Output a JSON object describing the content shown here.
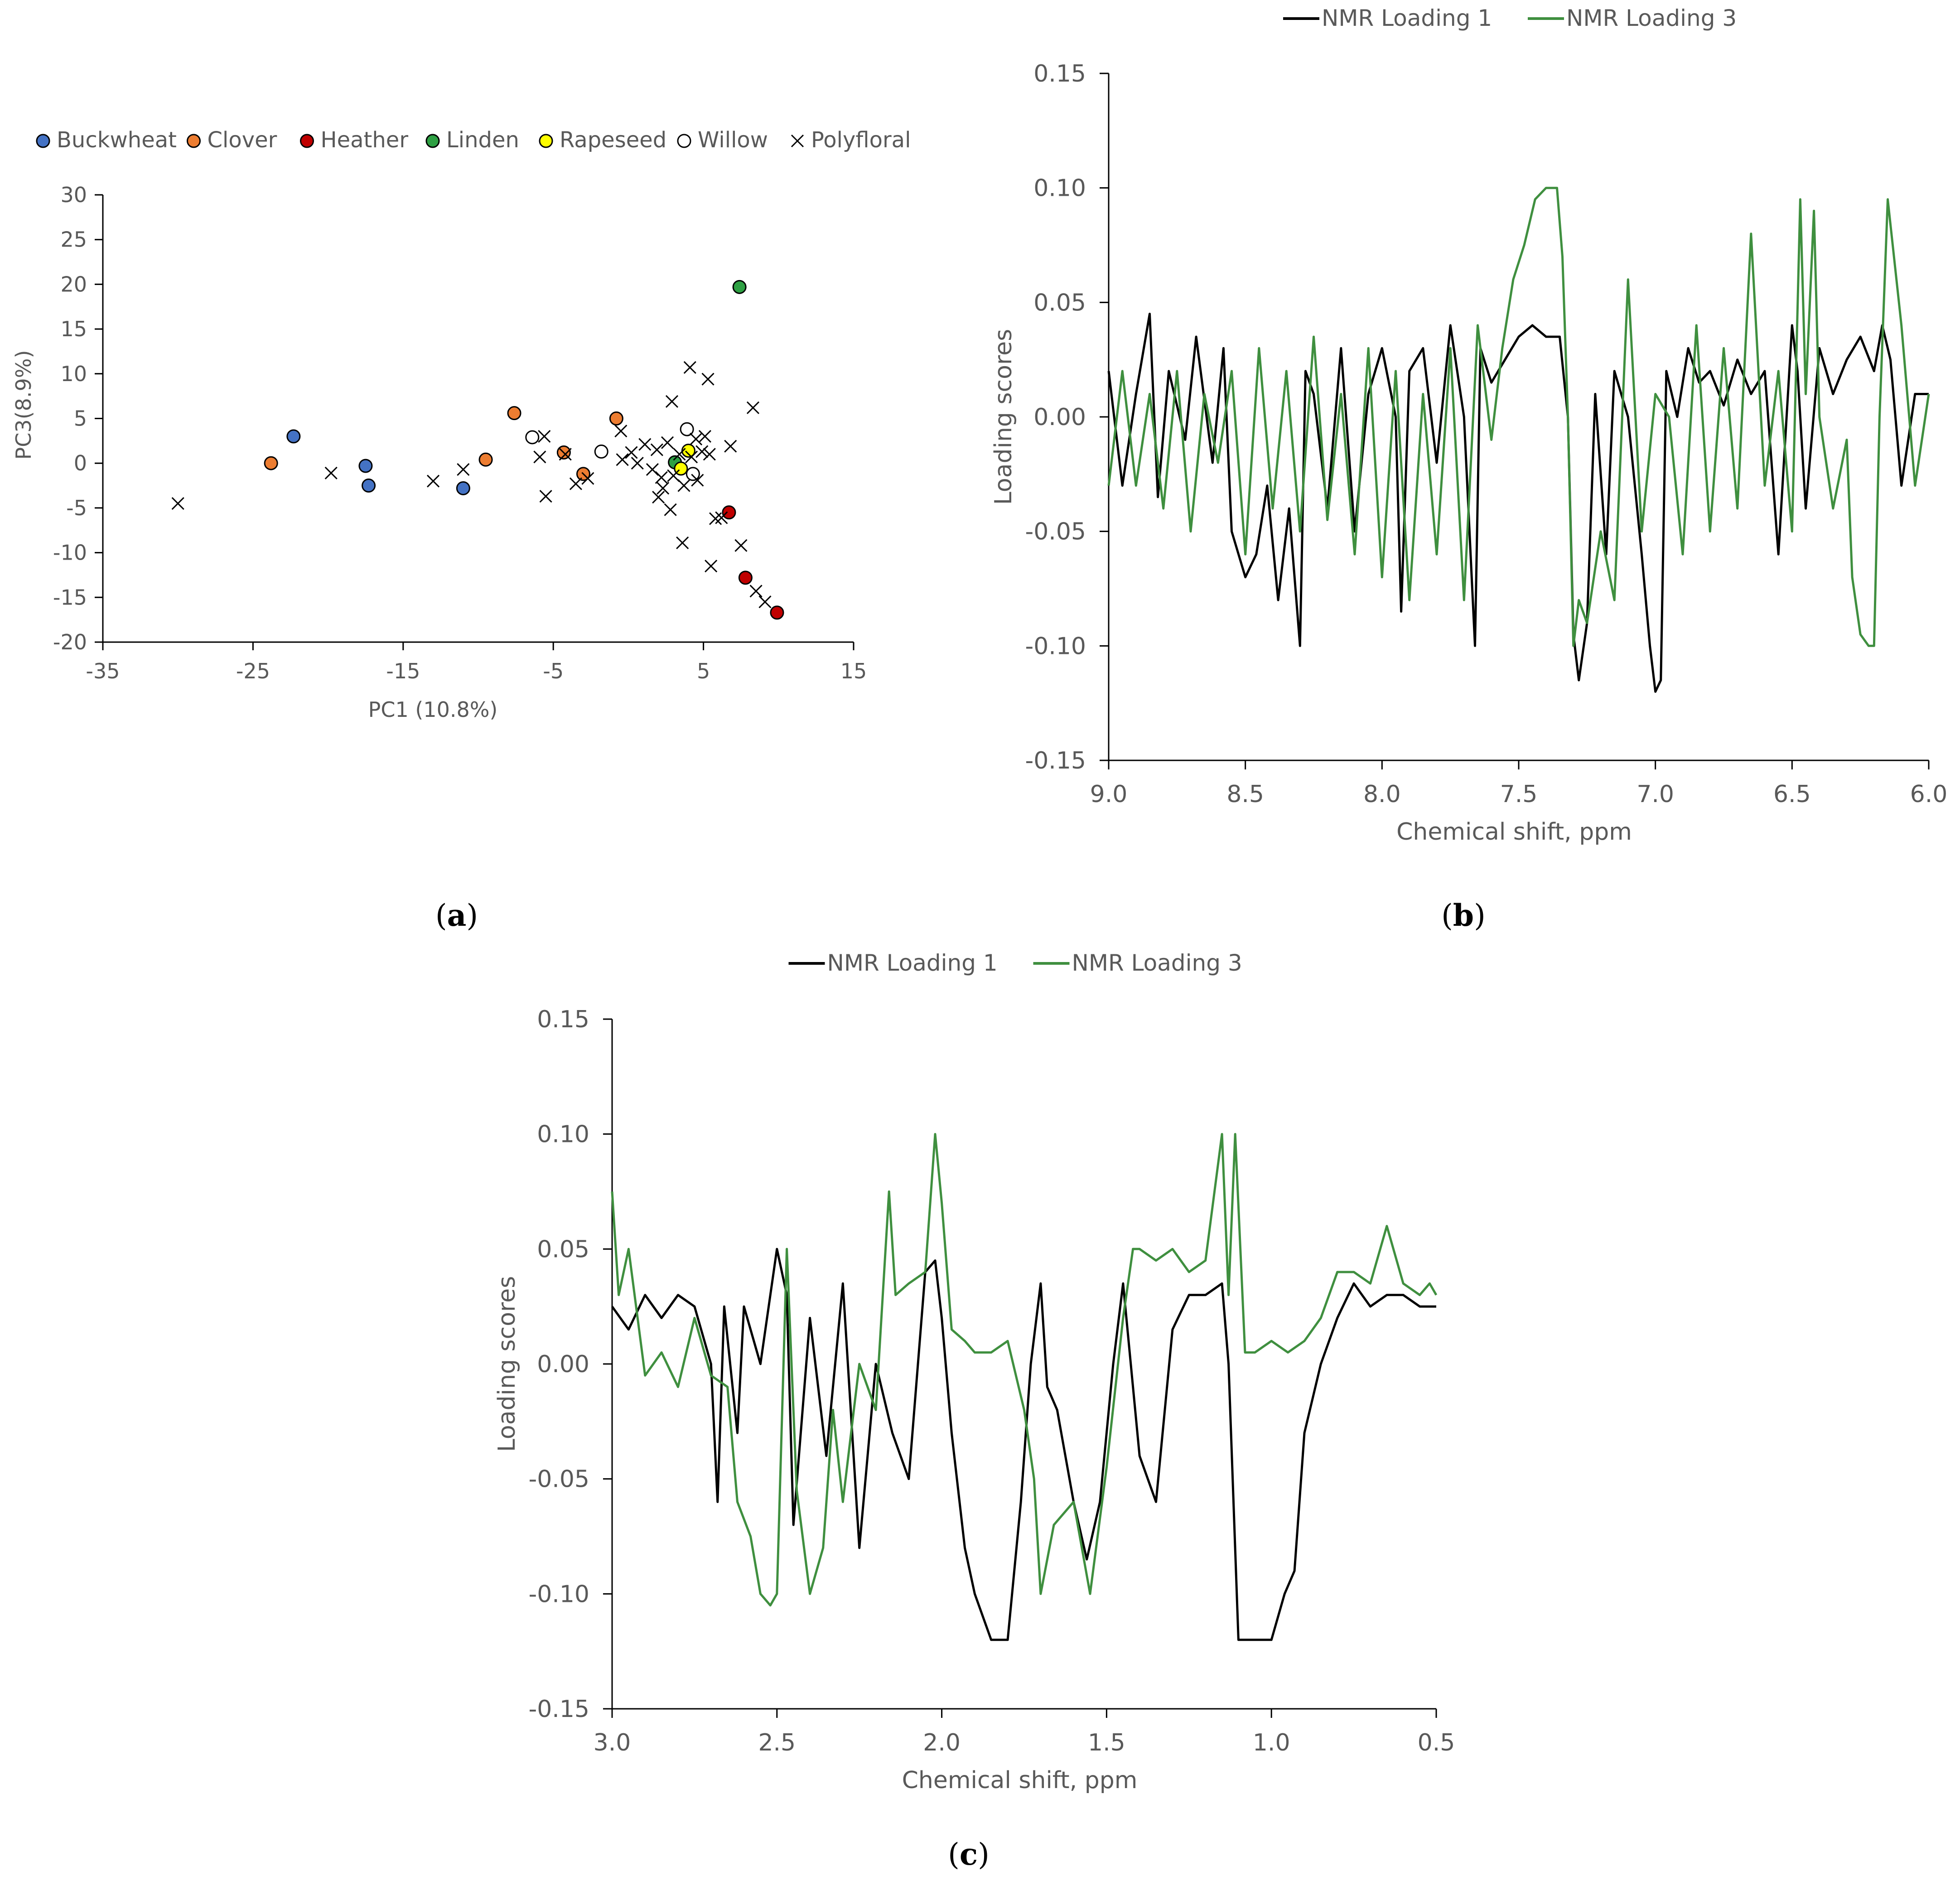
{
  "panel_labels": [
    "a",
    "b",
    "c"
  ],
  "colors": {
    "buckwheat": "#4472c4",
    "clover": "#ed7d31",
    "heather": "#c00000",
    "linden": "#2ea043",
    "rapeseed": "#ffff00",
    "loading1": "#000000",
    "loading3": "#3f8f3f",
    "axis": "#000000",
    "text": "#595959"
  },
  "chart_data": [
    {
      "id": "a",
      "type": "scatter",
      "title": "",
      "xlabel": "PC1 (10.8%)",
      "ylabel": "PC3(8.9%)",
      "xlim": [
        -35,
        15
      ],
      "ylim": [
        -20,
        30
      ],
      "xticks": [
        -35,
        -25,
        -15,
        -5,
        5,
        15
      ],
      "yticks": [
        -20,
        -15,
        -10,
        -5,
        0,
        5,
        10,
        15,
        20,
        25,
        30
      ],
      "grid": false,
      "legend_position": "top",
      "series": [
        {
          "name": "Buckwheat",
          "marker": "circle",
          "color": "#4472c4",
          "points": [
            [
              -22.3,
              3.0
            ],
            [
              -17.5,
              -0.3
            ],
            [
              -17.3,
              -2.5
            ],
            [
              -11.0,
              -2.8
            ]
          ]
        },
        {
          "name": "Clover",
          "marker": "circle",
          "color": "#ed7d31",
          "points": [
            [
              -23.8,
              0.0
            ],
            [
              -9.5,
              0.4
            ],
            [
              -7.6,
              5.6
            ],
            [
              -4.3,
              1.2
            ],
            [
              -3.0,
              -1.2
            ],
            [
              -0.8,
              5.0
            ]
          ]
        },
        {
          "name": "Heather",
          "marker": "circle",
          "color": "#c00000",
          "points": [
            [
              6.7,
              -5.5
            ],
            [
              7.8,
              -12.8
            ],
            [
              9.9,
              -16.7
            ]
          ]
        },
        {
          "name": "Linden",
          "marker": "circle",
          "color": "#2ea043",
          "points": [
            [
              7.4,
              19.7
            ],
            [
              3.1,
              0.1
            ]
          ]
        },
        {
          "name": "Rapeseed",
          "marker": "circle",
          "color": "#ffff00",
          "points": [
            [
              4.0,
              1.4
            ],
            [
              3.5,
              -0.6
            ]
          ]
        },
        {
          "name": "Willow",
          "marker": "open-circle",
          "color": "#ffffff",
          "points": [
            [
              -6.4,
              2.9
            ],
            [
              -1.8,
              1.3
            ],
            [
              3.9,
              3.8
            ],
            [
              4.3,
              -1.2
            ]
          ]
        },
        {
          "name": "Polyfloral",
          "marker": "x",
          "color": "#000000",
          "points": [
            [
              -30.0,
              -4.5
            ],
            [
              -19.8,
              -1.1
            ],
            [
              -13.0,
              -2.0
            ],
            [
              -11.0,
              -0.7
            ],
            [
              -5.9,
              0.7
            ],
            [
              -5.6,
              3.0
            ],
            [
              -5.5,
              -3.7
            ],
            [
              -4.2,
              1.0
            ],
            [
              -3.5,
              -2.3
            ],
            [
              -2.7,
              -1.7
            ],
            [
              -0.5,
              3.6
            ],
            [
              -0.4,
              0.4
            ],
            [
              0.2,
              1.2
            ],
            [
              0.6,
              0.0
            ],
            [
              1.1,
              2.1
            ],
            [
              1.6,
              -0.7
            ],
            [
              1.9,
              1.5
            ],
            [
              2.2,
              -1.6
            ],
            [
              2.0,
              -3.8
            ],
            [
              2.3,
              -2.8
            ],
            [
              2.6,
              2.3
            ],
            [
              2.9,
              6.9
            ],
            [
              3.0,
              -1.4
            ],
            [
              2.8,
              -5.2
            ],
            [
              3.4,
              1.0
            ],
            [
              3.6,
              -8.9
            ],
            [
              4.1,
              10.7
            ],
            [
              4.2,
              0.7
            ],
            [
              4.5,
              2.7
            ],
            [
              4.6,
              -1.9
            ],
            [
              4.9,
              1.3
            ],
            [
              5.1,
              3.0
            ],
            [
              5.3,
              9.4
            ],
            [
              5.5,
              -11.5
            ],
            [
              5.8,
              -6.2
            ],
            [
              6.2,
              -6.1
            ],
            [
              6.8,
              1.9
            ],
            [
              7.5,
              -9.2
            ],
            [
              8.3,
              6.2
            ],
            [
              8.5,
              -14.3
            ],
            [
              9.1,
              -15.5
            ],
            [
              5.4,
              1.0
            ],
            [
              3.7,
              -2.5
            ]
          ]
        }
      ]
    },
    {
      "id": "b",
      "type": "line",
      "title": "",
      "xlabel": "Chemical shift, ppm",
      "ylabel": "Loading scores",
      "xlim": [
        9.0,
        6.0
      ],
      "ylim": [
        -0.15,
        0.15
      ],
      "xticks": [
        9.0,
        8.5,
        8.0,
        7.5,
        7.0,
        6.5,
        6.0
      ],
      "xtick_labels": [
        "9.0",
        "8.5",
        "8.0",
        "7.5",
        "7.0",
        "6.5",
        "6.0"
      ],
      "yticks": [
        -0.15,
        -0.1,
        -0.05,
        0.0,
        0.05,
        0.1,
        0.15
      ],
      "ytick_labels": [
        "-0.15",
        "-0.10",
        "-0.05",
        "0.00",
        "0.05",
        "0.10",
        "0.15"
      ],
      "grid": false,
      "legend_position": "top",
      "series": [
        {
          "name": "NMR Loading 1",
          "color": "#000000",
          "x": [
            9.0,
            8.95,
            8.9,
            8.85,
            8.82,
            8.78,
            8.72,
            8.68,
            8.62,
            8.58,
            8.55,
            8.5,
            8.46,
            8.42,
            8.38,
            8.34,
            8.3,
            8.28,
            8.25,
            8.2,
            8.15,
            8.1,
            8.05,
            8.0,
            7.95,
            7.93,
            7.9,
            7.85,
            7.8,
            7.75,
            7.7,
            7.66,
            7.64,
            7.6,
            7.55,
            7.5,
            7.45,
            7.4,
            7.35,
            7.32,
            7.3,
            7.28,
            7.25,
            7.22,
            7.18,
            7.15,
            7.1,
            7.05,
            7.02,
            7.0,
            6.98,
            6.96,
            6.92,
            6.88,
            6.84,
            6.8,
            6.75,
            6.7,
            6.65,
            6.6,
            6.55,
            6.5,
            6.48,
            6.45,
            6.4,
            6.35,
            6.3,
            6.25,
            6.2,
            6.17,
            6.14,
            6.1,
            6.05,
            6.0
          ],
          "values": [
            0.02,
            -0.03,
            0.01,
            0.045,
            -0.035,
            0.02,
            -0.01,
            0.035,
            -0.02,
            0.03,
            -0.05,
            -0.07,
            -0.06,
            -0.03,
            -0.08,
            -0.04,
            -0.1,
            0.02,
            0.01,
            -0.04,
            0.03,
            -0.05,
            0.01,
            0.03,
            0.0,
            -0.085,
            0.02,
            0.03,
            -0.02,
            0.04,
            0.0,
            -0.1,
            0.03,
            0.015,
            0.025,
            0.035,
            0.04,
            0.035,
            0.035,
            0.0,
            -0.095,
            -0.115,
            -0.09,
            0.01,
            -0.06,
            0.02,
            0.0,
            -0.06,
            -0.1,
            -0.12,
            -0.115,
            0.02,
            0.0,
            0.03,
            0.015,
            0.02,
            0.005,
            0.025,
            0.01,
            0.02,
            -0.06,
            0.04,
            0.02,
            -0.04,
            0.03,
            0.01,
            0.025,
            0.035,
            0.02,
            0.04,
            0.025,
            -0.03,
            0.01,
            0.01
          ]
        },
        {
          "name": "NMR Loading 3",
          "color": "#3f8f3f",
          "x": [
            9.0,
            8.95,
            8.9,
            8.85,
            8.8,
            8.75,
            8.7,
            8.65,
            8.6,
            8.55,
            8.5,
            8.45,
            8.4,
            8.35,
            8.3,
            8.25,
            8.2,
            8.15,
            8.1,
            8.05,
            8.0,
            7.95,
            7.9,
            7.85,
            7.8,
            7.75,
            7.7,
            7.65,
            7.6,
            7.56,
            7.52,
            7.48,
            7.44,
            7.4,
            7.36,
            7.34,
            7.32,
            7.3,
            7.28,
            7.25,
            7.2,
            7.15,
            7.1,
            7.05,
            7.0,
            6.95,
            6.9,
            6.85,
            6.8,
            6.75,
            6.7,
            6.65,
            6.6,
            6.55,
            6.5,
            6.47,
            6.45,
            6.42,
            6.4,
            6.35,
            6.3,
            6.28,
            6.25,
            6.22,
            6.2,
            6.18,
            6.15,
            6.1,
            6.05,
            6.0
          ],
          "values": [
            -0.03,
            0.02,
            -0.03,
            0.01,
            -0.04,
            0.02,
            -0.05,
            0.01,
            -0.02,
            0.02,
            -0.06,
            0.03,
            -0.04,
            0.02,
            -0.05,
            0.035,
            -0.045,
            0.01,
            -0.06,
            0.03,
            -0.07,
            0.02,
            -0.08,
            0.01,
            -0.06,
            0.03,
            -0.08,
            0.04,
            -0.01,
            0.03,
            0.06,
            0.075,
            0.095,
            0.1,
            0.1,
            0.07,
            0.0,
            -0.1,
            -0.08,
            -0.09,
            -0.05,
            -0.08,
            0.06,
            -0.05,
            0.01,
            0.0,
            -0.06,
            0.04,
            -0.05,
            0.03,
            -0.04,
            0.08,
            -0.03,
            0.02,
            -0.05,
            0.095,
            0.01,
            0.09,
            0.0,
            -0.04,
            -0.01,
            -0.07,
            -0.095,
            -0.1,
            -0.1,
            0.0,
            0.095,
            0.04,
            -0.03,
            0.01
          ]
        }
      ]
    },
    {
      "id": "c",
      "type": "line",
      "title": "",
      "xlabel": "Chemical shift, ppm",
      "ylabel": "Loading scores",
      "xlim": [
        3.0,
        0.5
      ],
      "ylim": [
        -0.15,
        0.15
      ],
      "xticks": [
        3.0,
        2.5,
        2.0,
        1.5,
        1.0,
        0.5
      ],
      "xtick_labels": [
        "3.0",
        "2.5",
        "2.0",
        "1.5",
        "1.0",
        "0.5"
      ],
      "yticks": [
        -0.15,
        -0.1,
        -0.05,
        0.0,
        0.05,
        0.1,
        0.15
      ],
      "ytick_labels": [
        "-0.15",
        "-0.10",
        "-0.05",
        "0.00",
        "0.05",
        "0.10",
        "0.15"
      ],
      "grid": false,
      "legend_position": "top",
      "series": [
        {
          "name": "NMR Loading 1",
          "color": "#000000",
          "x": [
            3.0,
            2.95,
            2.9,
            2.85,
            2.8,
            2.75,
            2.7,
            2.68,
            2.66,
            2.62,
            2.6,
            2.55,
            2.5,
            2.47,
            2.45,
            2.4,
            2.35,
            2.3,
            2.25,
            2.2,
            2.15,
            2.1,
            2.05,
            2.02,
            2.0,
            1.97,
            1.93,
            1.9,
            1.85,
            1.8,
            1.76,
            1.73,
            1.7,
            1.68,
            1.65,
            1.6,
            1.56,
            1.52,
            1.48,
            1.45,
            1.4,
            1.35,
            1.3,
            1.25,
            1.2,
            1.15,
            1.13,
            1.1,
            1.05,
            1.0,
            0.96,
            0.93,
            0.9,
            0.85,
            0.8,
            0.75,
            0.7,
            0.65,
            0.6,
            0.55,
            0.5
          ],
          "values": [
            0.025,
            0.015,
            0.03,
            0.02,
            0.03,
            0.025,
            0.0,
            -0.06,
            0.025,
            -0.03,
            0.025,
            0.0,
            0.05,
            0.03,
            -0.07,
            0.02,
            -0.04,
            0.035,
            -0.08,
            0.0,
            -0.03,
            -0.05,
            0.04,
            0.045,
            0.02,
            -0.03,
            -0.08,
            -0.1,
            -0.12,
            -0.12,
            -0.06,
            0.0,
            0.035,
            -0.01,
            -0.02,
            -0.06,
            -0.085,
            -0.06,
            0.0,
            0.035,
            -0.04,
            -0.06,
            0.015,
            0.03,
            0.03,
            0.035,
            0.0,
            -0.12,
            -0.12,
            -0.12,
            -0.1,
            -0.09,
            -0.03,
            0.0,
            0.02,
            0.035,
            0.025,
            0.03,
            0.03,
            0.025,
            0.025
          ]
        },
        {
          "name": "NMR Loading 3",
          "color": "#3f8f3f",
          "x": [
            3.0,
            2.98,
            2.95,
            2.9,
            2.85,
            2.8,
            2.75,
            2.7,
            2.65,
            2.62,
            2.58,
            2.55,
            2.52,
            2.5,
            2.47,
            2.44,
            2.4,
            2.36,
            2.33,
            2.3,
            2.25,
            2.2,
            2.16,
            2.14,
            2.1,
            2.05,
            2.02,
            2.0,
            1.97,
            1.93,
            1.9,
            1.85,
            1.8,
            1.75,
            1.72,
            1.7,
            1.66,
            1.6,
            1.55,
            1.5,
            1.45,
            1.42,
            1.4,
            1.35,
            1.3,
            1.25,
            1.2,
            1.15,
            1.13,
            1.11,
            1.08,
            1.05,
            1.0,
            0.95,
            0.9,
            0.85,
            0.8,
            0.75,
            0.7,
            0.65,
            0.6,
            0.55,
            0.52,
            0.5
          ],
          "values": [
            0.075,
            0.03,
            0.05,
            -0.005,
            0.005,
            -0.01,
            0.02,
            -0.005,
            -0.01,
            -0.06,
            -0.075,
            -0.1,
            -0.105,
            -0.1,
            0.05,
            -0.055,
            -0.1,
            -0.08,
            -0.02,
            -0.06,
            0.0,
            -0.02,
            0.075,
            0.03,
            0.035,
            0.04,
            0.1,
            0.07,
            0.015,
            0.01,
            0.005,
            0.005,
            0.01,
            -0.02,
            -0.05,
            -0.1,
            -0.07,
            -0.06,
            -0.1,
            -0.045,
            0.02,
            0.05,
            0.05,
            0.045,
            0.05,
            0.04,
            0.045,
            0.1,
            0.03,
            0.1,
            0.005,
            0.005,
            0.01,
            0.005,
            0.01,
            0.02,
            0.04,
            0.04,
            0.035,
            0.06,
            0.035,
            0.03,
            0.035,
            0.03
          ]
        }
      ]
    }
  ]
}
